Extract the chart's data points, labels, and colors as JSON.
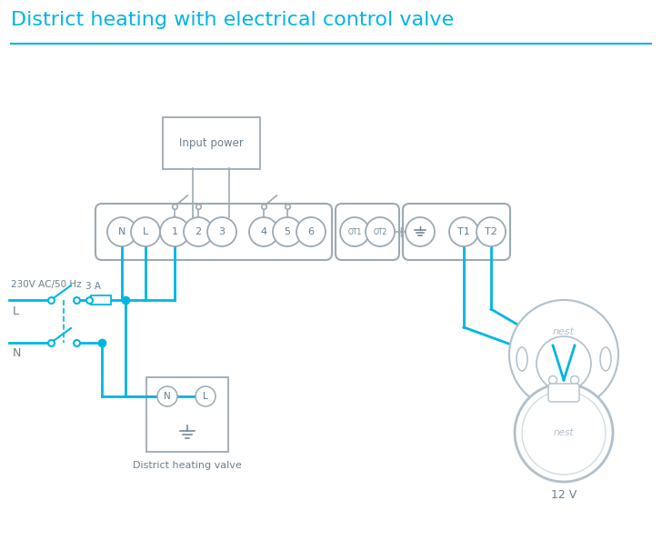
{
  "title": "District heating with electrical control valve",
  "title_color": "#00B5E2",
  "title_fontsize": 16,
  "cyan": "#00B5E2",
  "gray": "#9baab5",
  "dgray": "#6a7f8e",
  "lgray": "#b0c0cc",
  "bg": "#ffffff",
  "term_main": [
    "N",
    "L",
    "1",
    "2",
    "3",
    "4",
    "5",
    "6"
  ],
  "term_ot": [
    "OT1",
    "OT2"
  ],
  "term_t": [
    "T1",
    "T2"
  ],
  "label_230": "230V AC/50 Hz",
  "label_L": "L",
  "label_N": "N",
  "label_3A": "3 A",
  "label_input": "Input power",
  "label_dhv": "District heating valve",
  "label_nest": "nest",
  "label_12v": "12 V"
}
